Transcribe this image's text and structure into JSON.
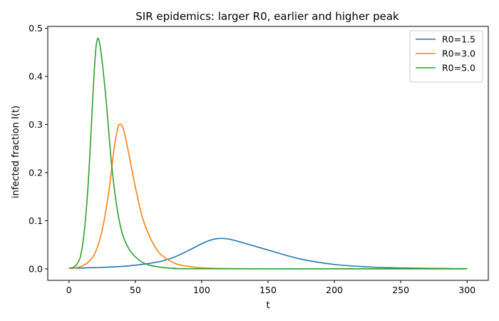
{
  "chart_data": {
    "type": "line",
    "title": "SIR epidemics: larger R0, earlier and higher peak",
    "xlabel": "t",
    "ylabel": "infected fraction I(t)",
    "xlim": [
      -16,
      316
    ],
    "ylim": [
      -0.024,
      0.504
    ],
    "xticks": [
      0,
      50,
      100,
      150,
      200,
      250,
      300
    ],
    "xtick_labels": [
      "0",
      "50",
      "100",
      "150",
      "200",
      "250",
      "300"
    ],
    "yticks": [
      0.0,
      0.1,
      0.2,
      0.3,
      0.4,
      0.5
    ],
    "ytick_labels": [
      "0.0",
      "0.1",
      "0.2",
      "0.3",
      "0.4",
      "0.5"
    ],
    "grid": false,
    "legend_position": "top-right",
    "series": [
      {
        "name": "R0=1.5",
        "color": "#1f77b4",
        "points": [
          [
            0,
            0.001
          ],
          [
            20,
            0.0025
          ],
          [
            40,
            0.005
          ],
          [
            60,
            0.011
          ],
          [
            70,
            0.016
          ],
          [
            80,
            0.025
          ],
          [
            90,
            0.038
          ],
          [
            100,
            0.052
          ],
          [
            107,
            0.06
          ],
          [
            113,
            0.063
          ],
          [
            120,
            0.062
          ],
          [
            130,
            0.055
          ],
          [
            150,
            0.039
          ],
          [
            175,
            0.02
          ],
          [
            200,
            0.009
          ],
          [
            225,
            0.004
          ],
          [
            250,
            0.0017
          ],
          [
            275,
            0.0007
          ],
          [
            300,
            0.0003
          ]
        ]
      },
      {
        "name": "R0=3.0",
        "color": "#ff7f0e",
        "points": [
          [
            0,
            0.001
          ],
          [
            5,
            0.002
          ],
          [
            10,
            0.006
          ],
          [
            15,
            0.015
          ],
          [
            20,
            0.035
          ],
          [
            25,
            0.08
          ],
          [
            30,
            0.16
          ],
          [
            34,
            0.25
          ],
          [
            37,
            0.295
          ],
          [
            38.5,
            0.3
          ],
          [
            40,
            0.297
          ],
          [
            42,
            0.28
          ],
          [
            45,
            0.24
          ],
          [
            50,
            0.17
          ],
          [
            55,
            0.11
          ],
          [
            60,
            0.072
          ],
          [
            65,
            0.045
          ],
          [
            70,
            0.028
          ],
          [
            80,
            0.011
          ],
          [
            90,
            0.005
          ],
          [
            100,
            0.002
          ],
          [
            120,
            0.0005
          ],
          [
            150,
            0.0001
          ],
          [
            300,
            0.0
          ]
        ]
      },
      {
        "name": "R0=5.0",
        "color": "#2ca02c",
        "points": [
          [
            0,
            0.001
          ],
          [
            3,
            0.003
          ],
          [
            6,
            0.01
          ],
          [
            9,
            0.03
          ],
          [
            12,
            0.09
          ],
          [
            15,
            0.2
          ],
          [
            18,
            0.36
          ],
          [
            20,
            0.45
          ],
          [
            21.5,
            0.478
          ],
          [
            23,
            0.47
          ],
          [
            25,
            0.43
          ],
          [
            28,
            0.35
          ],
          [
            32,
            0.22
          ],
          [
            36,
            0.13
          ],
          [
            40,
            0.075
          ],
          [
            45,
            0.042
          ],
          [
            50,
            0.025
          ],
          [
            55,
            0.014
          ],
          [
            60,
            0.008
          ],
          [
            70,
            0.003
          ],
          [
            80,
            0.001
          ],
          [
            100,
            0.0001
          ],
          [
            300,
            0.0
          ]
        ]
      }
    ]
  }
}
